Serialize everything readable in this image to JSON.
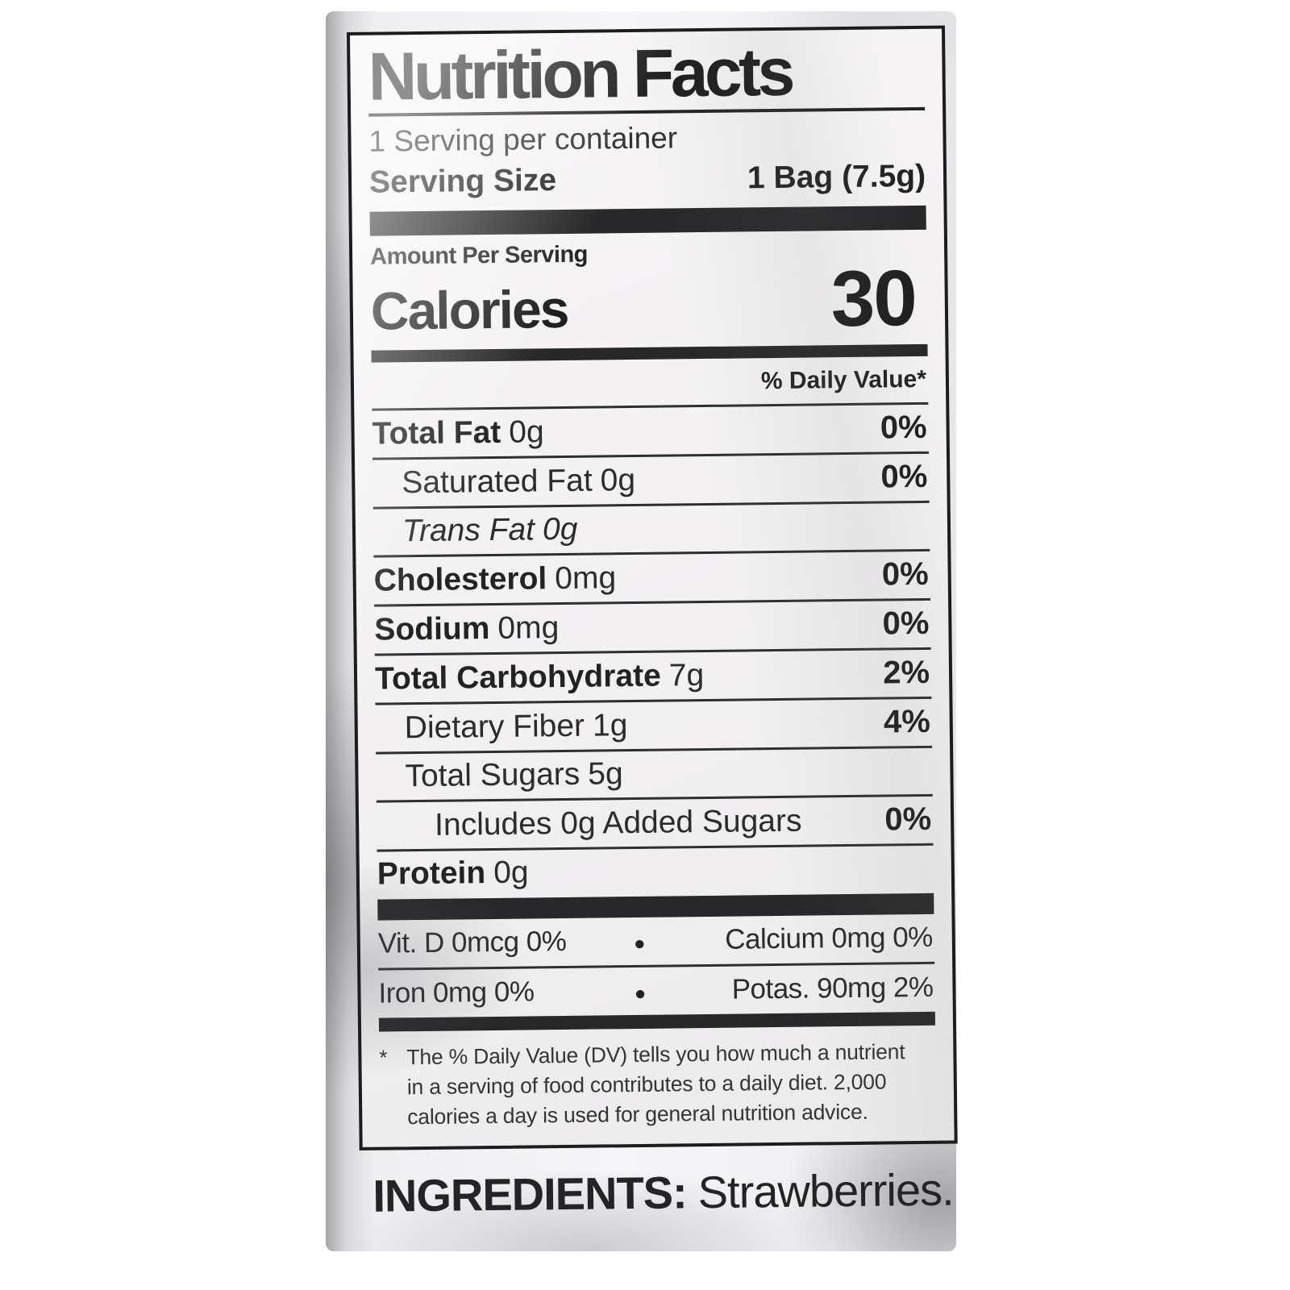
{
  "label": {
    "title": "Nutrition Facts",
    "servings_per_container": "1 Serving per container",
    "serving_size_label": "Serving Size",
    "serving_size_value": "1 Bag (7.5g)",
    "amount_per_serving": "Amount Per Serving",
    "calories_label": "Calories",
    "calories_value": "30",
    "daily_value_header": "% Daily Value*",
    "bullet": "●",
    "nutrients": [
      {
        "name": "Total Fat",
        "amount": "0g",
        "dv": "0%"
      },
      {
        "name": "Saturated Fat",
        "amount": "0g",
        "dv": "0%"
      },
      {
        "name": "Trans Fat",
        "amount": "0g",
        "dv": ""
      },
      {
        "name": "Cholesterol",
        "amount": "0mg",
        "dv": "0%"
      },
      {
        "name": "Sodium",
        "amount": "0mg",
        "dv": "0%"
      },
      {
        "name": "Total Carbohydrate",
        "amount": "7g",
        "dv": "2%"
      },
      {
        "name": "Dietary Fiber",
        "amount": "1g",
        "dv": "4%"
      },
      {
        "name": "Total Sugars",
        "amount": "5g",
        "dv": ""
      },
      {
        "name": "Includes 0g Added Sugars",
        "amount": "",
        "dv": "0%"
      },
      {
        "name": "Protein",
        "amount": "0g",
        "dv": ""
      }
    ],
    "micronutrients": [
      {
        "left": "Vit. D 0mcg 0%",
        "right": "Calcium 0mg 0%"
      },
      {
        "left": "Iron 0mg 0%",
        "right": "Potas. 90mg 2%"
      }
    ],
    "footnote_marker": "*",
    "footnote_lines": [
      "The % Daily Value (DV) tells you how much a nutrient",
      "in a serving of food contributes to a daily diet. 2,000",
      "calories a day is used for general nutrition advice."
    ]
  },
  "ingredients": {
    "label": "INGREDIENTS:",
    "value": "Strawberries."
  },
  "colors": {
    "ink": "#232325",
    "bar": "#28282a",
    "label_background": "#f3f1f2",
    "bag_shadow": "#a6a5a8",
    "page_background": "#ffffff"
  }
}
